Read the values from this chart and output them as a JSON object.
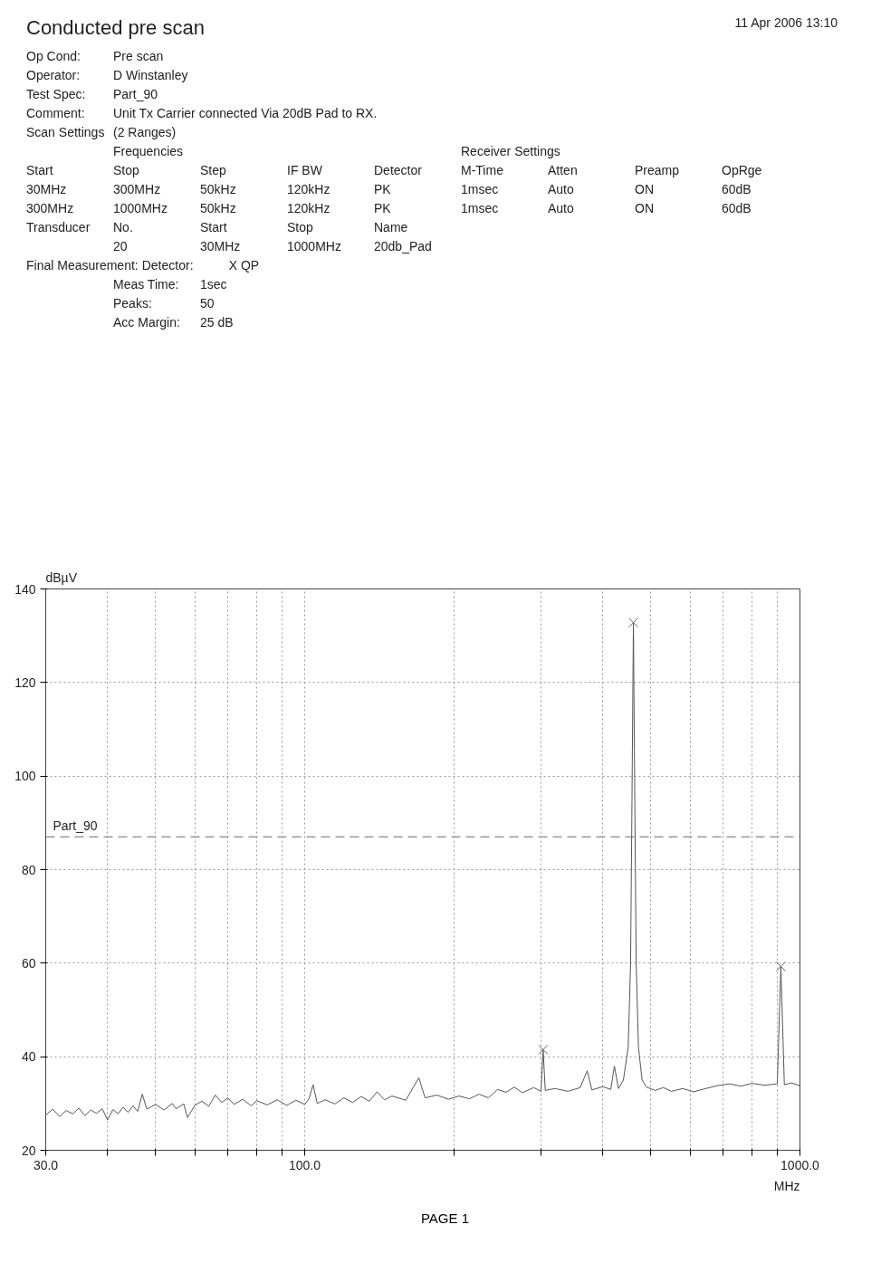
{
  "chart_data": {
    "type": "line",
    "title": "Conducted pre scan",
    "xlabel": "MHz",
    "ylabel": "dBµV",
    "log": "x",
    "grid": true,
    "xlim": [
      30,
      1000
    ],
    "xticks": [
      {
        "value": 30,
        "label": "30.0"
      },
      {
        "value": 40,
        "label": null
      },
      {
        "value": 50,
        "label": null
      },
      {
        "value": 60,
        "label": null
      },
      {
        "value": 70,
        "label": null
      },
      {
        "value": 80,
        "label": null
      },
      {
        "value": 90,
        "label": null
      },
      {
        "value": 100,
        "label": "100.0"
      },
      {
        "value": 200,
        "label": null
      },
      {
        "value": 300,
        "label": null
      },
      {
        "value": 400,
        "label": null
      },
      {
        "value": 500,
        "label": null
      },
      {
        "value": 600,
        "label": null
      },
      {
        "value": 700,
        "label": null
      },
      {
        "value": 800,
        "label": null
      },
      {
        "value": 900,
        "label": null
      },
      {
        "value": 1000,
        "label": "1000.0"
      }
    ],
    "ylim": [
      20,
      140
    ],
    "yticks": [
      20,
      40,
      60,
      80,
      100,
      120,
      140
    ],
    "ref_lines": [
      {
        "axis": "y",
        "value": 87,
        "label": "Part_90",
        "line_style": "dashed",
        "color": "#888888"
      }
    ],
    "series": [
      {
        "color": "#555555",
        "marker": "none",
        "x": [
          30,
          31,
          32,
          33,
          34,
          35,
          36,
          37,
          38,
          39,
          40,
          41,
          42,
          43,
          44,
          45,
          46,
          47,
          48,
          50,
          52,
          54,
          55,
          57,
          58,
          60,
          62,
          64,
          66,
          68,
          70,
          72,
          75,
          78,
          80,
          84,
          88,
          92,
          96,
          100,
          102,
          104,
          106,
          110,
          115,
          120,
          125,
          130,
          135,
          140,
          145,
          150,
          160,
          170,
          175,
          185,
          195,
          205,
          215,
          225,
          235,
          245,
          255,
          265,
          275,
          290,
          300,
          303,
          306,
          320,
          340,
          360,
          372,
          380,
          400,
          415,
          422,
          430,
          440,
          450,
          455,
          458,
          461,
          464,
          467,
          472,
          480,
          490,
          510,
          530,
          550,
          580,
          610,
          640,
          680,
          720,
          760,
          800,
          850,
          900,
          915,
          930,
          960,
          1000
        ],
        "values": [
          27.5,
          28.8,
          27.2,
          28.5,
          27.8,
          29,
          27.4,
          28.6,
          27.9,
          28.9,
          26.5,
          28.7,
          27.8,
          29.2,
          28.1,
          29.5,
          28.3,
          32,
          28.8,
          29.8,
          28.6,
          30,
          28.9,
          29.9,
          27,
          29.6,
          30.5,
          29.4,
          31.8,
          30.2,
          31.2,
          29.8,
          30.9,
          29.5,
          30.6,
          29.7,
          30.8,
          29.6,
          30.7,
          29.8,
          31,
          34,
          30,
          30.8,
          29.9,
          31.2,
          30.2,
          31.5,
          30.5,
          32.5,
          30.8,
          31.6,
          30.7,
          35.5,
          31.2,
          31.8,
          30.9,
          31.6,
          31,
          32,
          31.2,
          33,
          32.4,
          33.5,
          32.3,
          33.4,
          32.6,
          41.5,
          32.8,
          33.2,
          32.6,
          33.4,
          37,
          32.9,
          33.6,
          33,
          38,
          33.2,
          35,
          42,
          60,
          95,
          132.8,
          95,
          60,
          42,
          35,
          33.5,
          32.8,
          33.4,
          32.6,
          33.2,
          32.5,
          33.1,
          33.8,
          34.2,
          33.7,
          34.3,
          33.9,
          34.2,
          59.3,
          34,
          34.4,
          33.8
        ]
      },
      {
        "type": "scatter",
        "color": "#666666",
        "marker": "cross",
        "x": [
          303,
          461,
          915
        ],
        "values": [
          41.5,
          132.8,
          59.3
        ]
      }
    ],
    "annotations": [
      "11 Apr 2006  13:10",
      "Op Cond:  Pre scan",
      "Operator:  D Winstanley",
      "Test Spec:  Part_90",
      "Comment:  Unit Tx Carrier connected Via 20dB Pad to RX.",
      "Scan Settings  (2 Ranges)",
      "  Frequencies        Receiver Settings",
      "Start  Stop  Step  IF BW  Detector  M-Time  Atten  Preamp  OpRge",
      "30MHz  300MHz  50kHz  120kHz  PK  1msec  Auto  ON  60dB",
      "300MHz  1000MHz  50kHz  120kHz  PK  1msec  Auto  ON  60dB",
      "Transducer  No.  Start  Stop  Name",
      "  20  30MHz  1000MHz  20db_Pad",
      "Final Measurement:  Detector:  X QP",
      "  Meas Time:  1sec",
      "  Peaks:  50",
      "  Acc Margin:  25 dB",
      "PAGE 1"
    ]
  }
}
